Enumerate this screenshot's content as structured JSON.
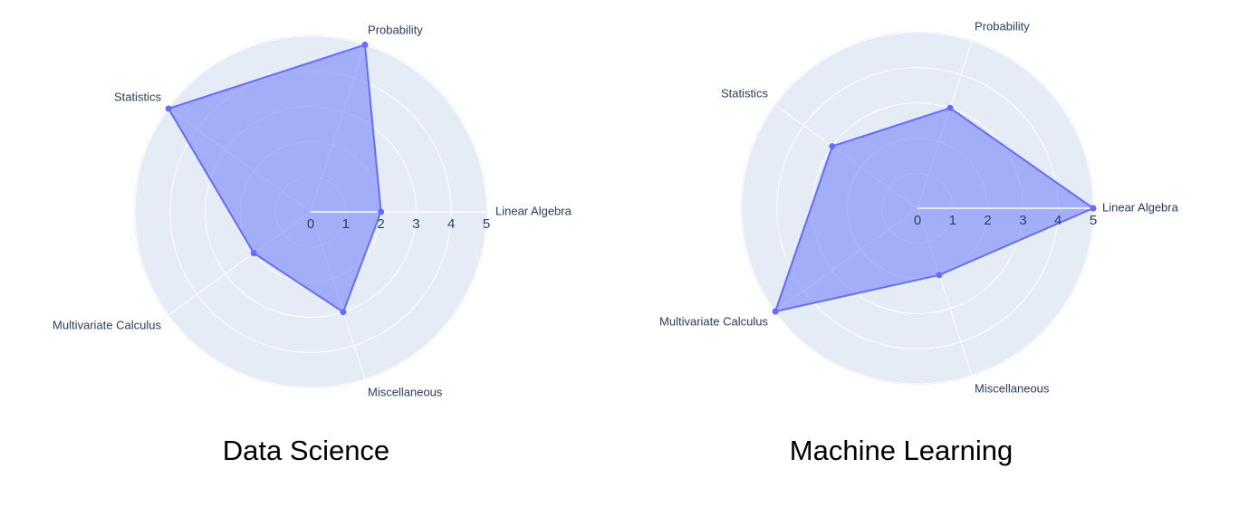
{
  "chart_data": [
    {
      "type": "radar",
      "title": "Data Science",
      "categories": [
        "Linear Algebra",
        "Probability",
        "Statistics",
        "Multivariate Calculus",
        "Miscellaneous"
      ],
      "values": [
        2,
        5,
        5,
        2,
        3
      ],
      "color": "#636efa",
      "rlim": [
        0,
        5
      ],
      "rticks": [
        0,
        1,
        2,
        3,
        4,
        5
      ]
    },
    {
      "type": "radar",
      "title": "Machine Learning",
      "categories": [
        "Linear Algebra",
        "Probability",
        "Statistics",
        "Multivariate Calculus",
        "Miscellaneous"
      ],
      "values": [
        5,
        3,
        3,
        5,
        2
      ],
      "color": "#636efa",
      "rlim": [
        0,
        5
      ],
      "rticks": [
        0,
        1,
        2,
        3,
        4,
        5
      ]
    }
  ]
}
